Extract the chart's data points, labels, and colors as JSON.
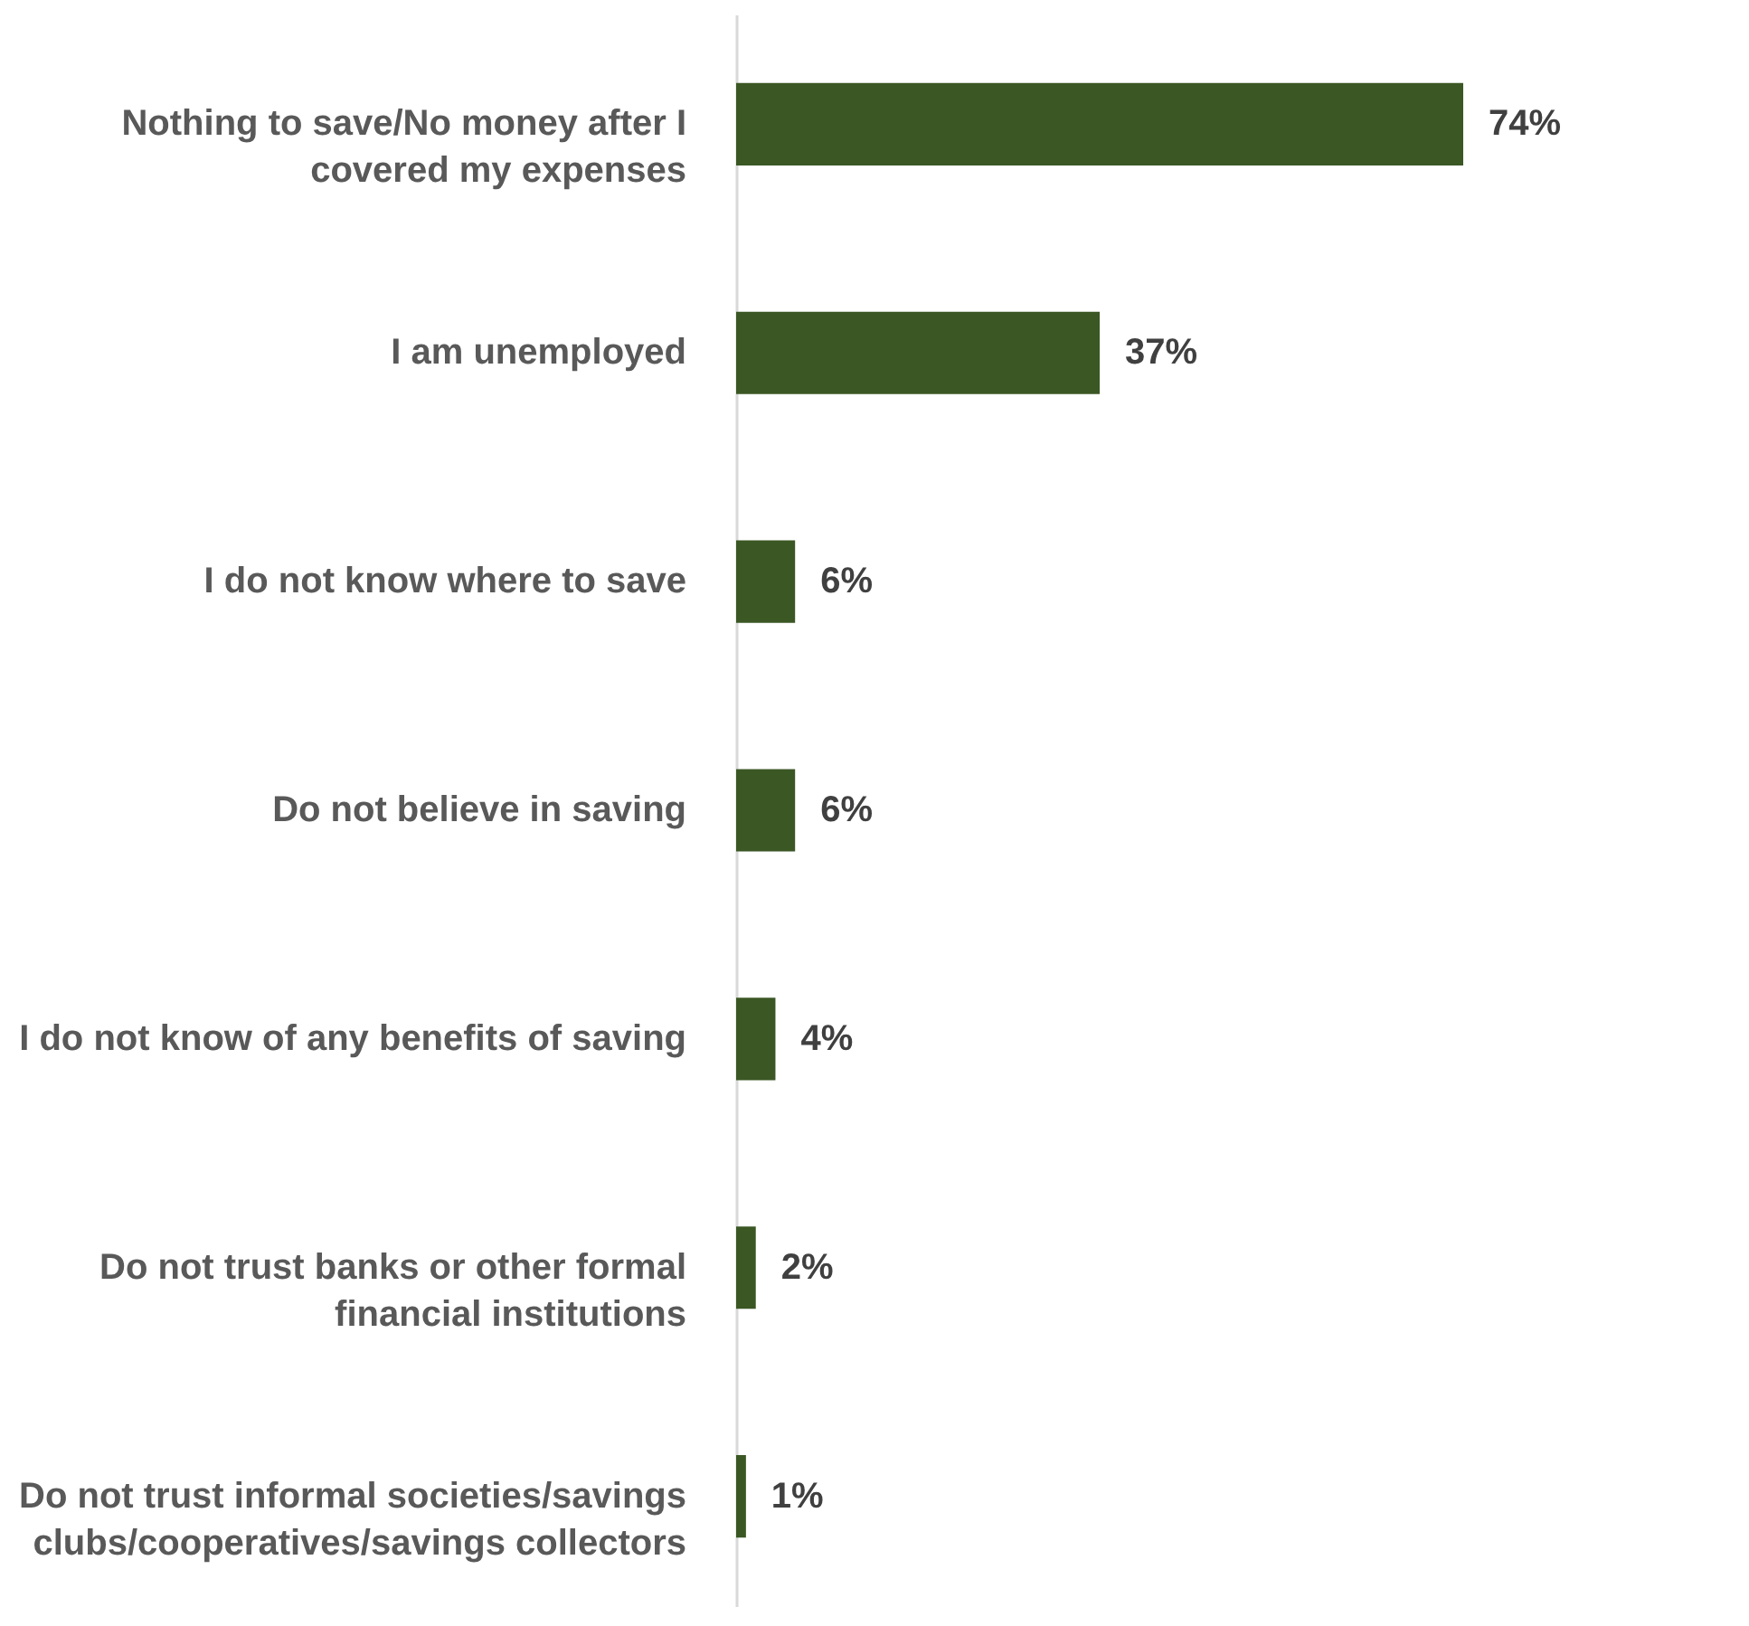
{
  "chart_data": {
    "type": "bar",
    "orientation": "horizontal",
    "categories": [
      "Nothing to save/No money after I covered my expenses",
      "I am unemployed",
      "I do not know where to save",
      "Do not believe in saving",
      "I do not know of any benefits of saving",
      "Do not trust banks or other formal financial institutions",
      "Do not trust informal societies/savings clubs/cooperatives/savings collectors"
    ],
    "values": [
      74,
      37,
      6,
      6,
      4,
      2,
      1
    ],
    "value_labels": [
      "74%",
      "37%",
      "6%",
      "6%",
      "4%",
      "2%",
      "1%"
    ],
    "color": "#3b5724"
  }
}
